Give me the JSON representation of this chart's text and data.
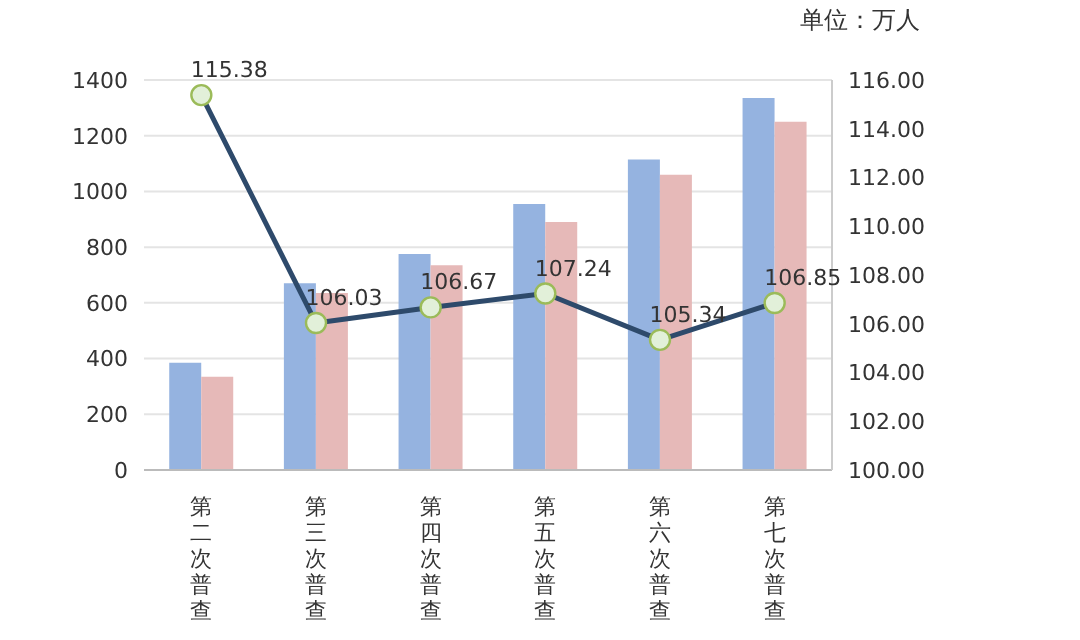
{
  "chart_data": {
    "type": "bar",
    "annotations": [
      "单位：万人"
    ],
    "categories": [
      "第二次普查",
      "第三次普查",
      "第四次普查",
      "第五次普查",
      "第六次普查",
      "第七次普查"
    ],
    "series": [
      {
        "color": "#95b3e0",
        "values": [
          385,
          670,
          775,
          955,
          1115,
          1335
        ]
      },
      {
        "color": "#e6b9b8",
        "values": [
          335,
          635,
          735,
          890,
          1060,
          1250
        ]
      },
      {
        "type": "line",
        "axis": "y2",
        "color": "#2e4a6b",
        "values": [
          115.38,
          106.03,
          106.67,
          107.24,
          105.34,
          106.85
        ],
        "marker": "circle",
        "data_labels": true
      }
    ],
    "ylim": [
      0,
      1400
    ],
    "yticks": [
      0,
      200,
      400,
      600,
      800,
      1000,
      1200,
      1400
    ],
    "y2lim": [
      100,
      116
    ],
    "y2ticks": [
      {
        "value": 100,
        "label": "100.00"
      },
      {
        "value": 102,
        "label": "102.00"
      },
      {
        "value": 104,
        "label": "104.00"
      },
      {
        "value": 106,
        "label": "106.00"
      },
      {
        "value": 108,
        "label": "108.00"
      },
      {
        "value": 110,
        "label": "110.00"
      },
      {
        "value": 112,
        "label": "112.00"
      },
      {
        "value": 114,
        "label": "114.00"
      },
      {
        "value": 116,
        "label": "116.00"
      }
    ],
    "grid": "y",
    "legend": false
  }
}
